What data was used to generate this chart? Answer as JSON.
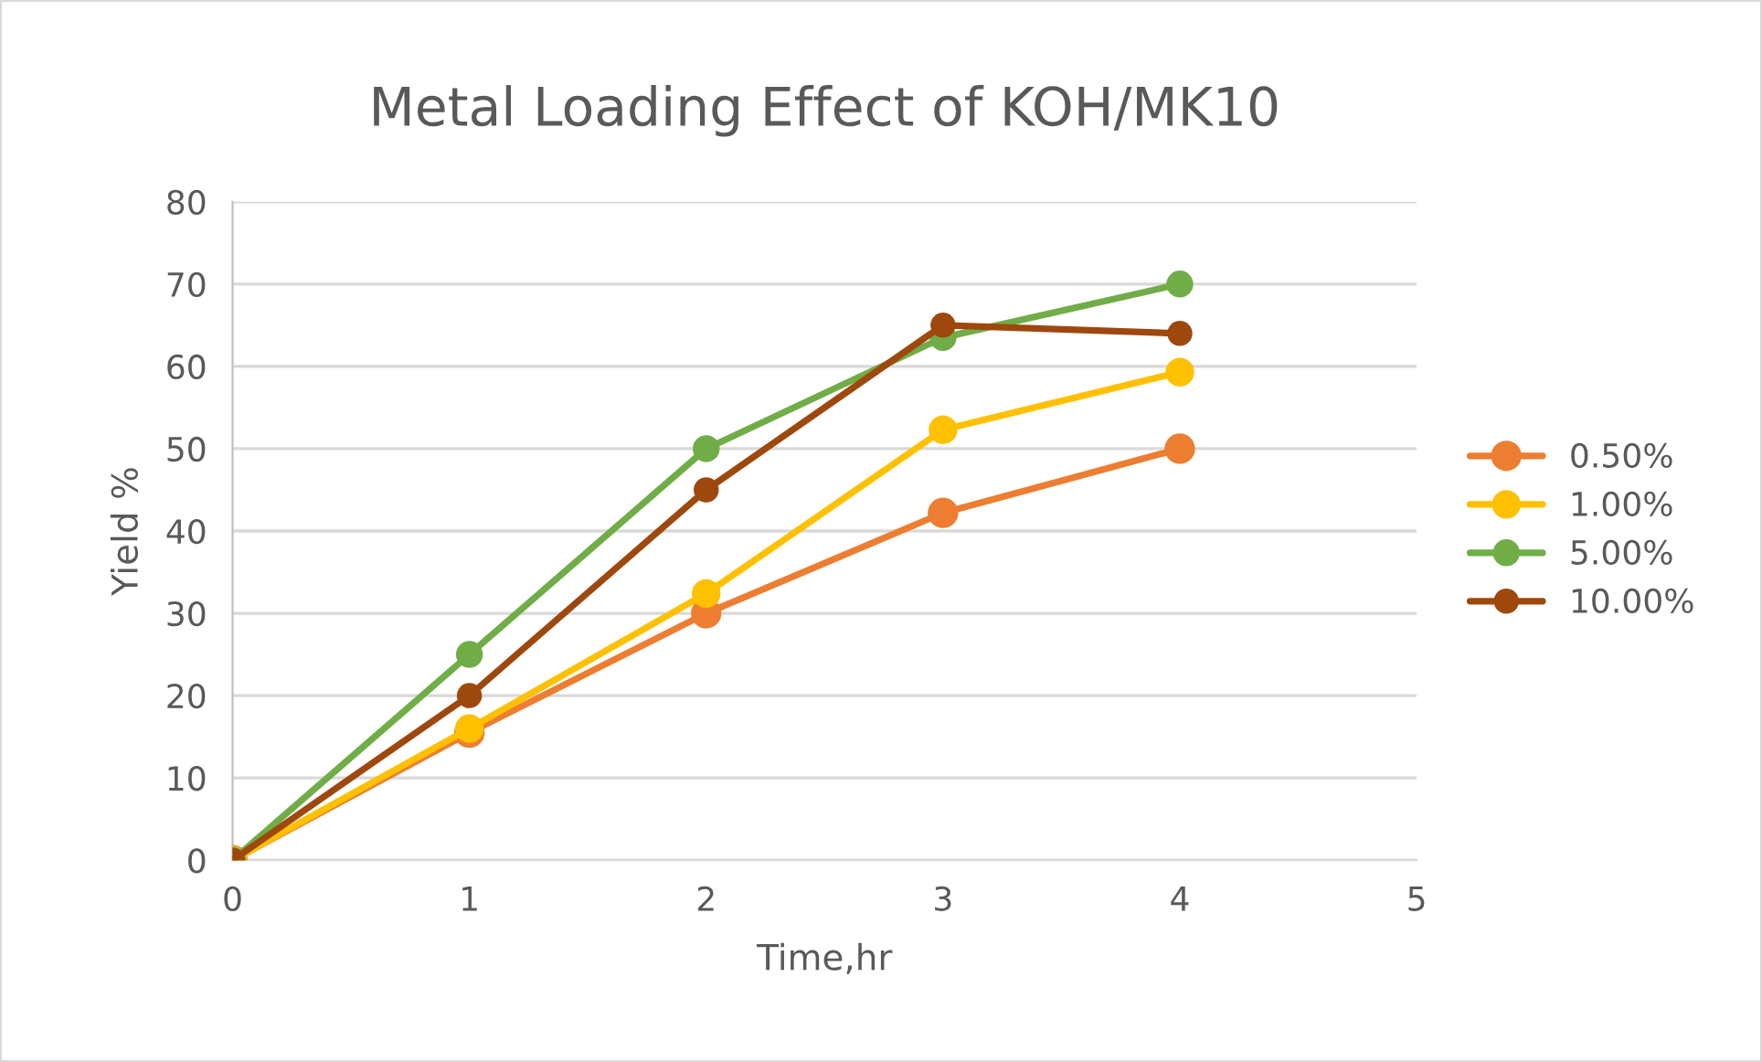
{
  "chart_data": {
    "type": "line",
    "title": "Metal Loading Effect of KOH/MK10",
    "xlabel": "Time,hr",
    "ylabel": "Yield %",
    "x": [
      0,
      1,
      2,
      3,
      4
    ],
    "series": [
      {
        "name": "0.50%",
        "color": "#ed7d31",
        "values": [
          0,
          15.5,
          30,
          42.2,
          50
        ]
      },
      {
        "name": "1.00%",
        "color": "#ffc000",
        "values": [
          0,
          16,
          32.4,
          52.3,
          59.3
        ]
      },
      {
        "name": "5.00%",
        "color": "#70ad47",
        "values": [
          0,
          25,
          50,
          63.5,
          70
        ]
      },
      {
        "name": "10.00%",
        "color": "#9e480e",
        "values": [
          0,
          20,
          45,
          65,
          64
        ]
      }
    ],
    "xlim": [
      0,
      5
    ],
    "xticks": [
      0,
      1,
      2,
      3,
      4,
      5
    ],
    "ylim": [
      0,
      80
    ],
    "yticks": [
      0,
      10,
      20,
      30,
      40,
      50,
      60,
      70,
      80
    ],
    "grid": "y",
    "legend": "right",
    "marker": "circle",
    "line_style": "solid"
  }
}
